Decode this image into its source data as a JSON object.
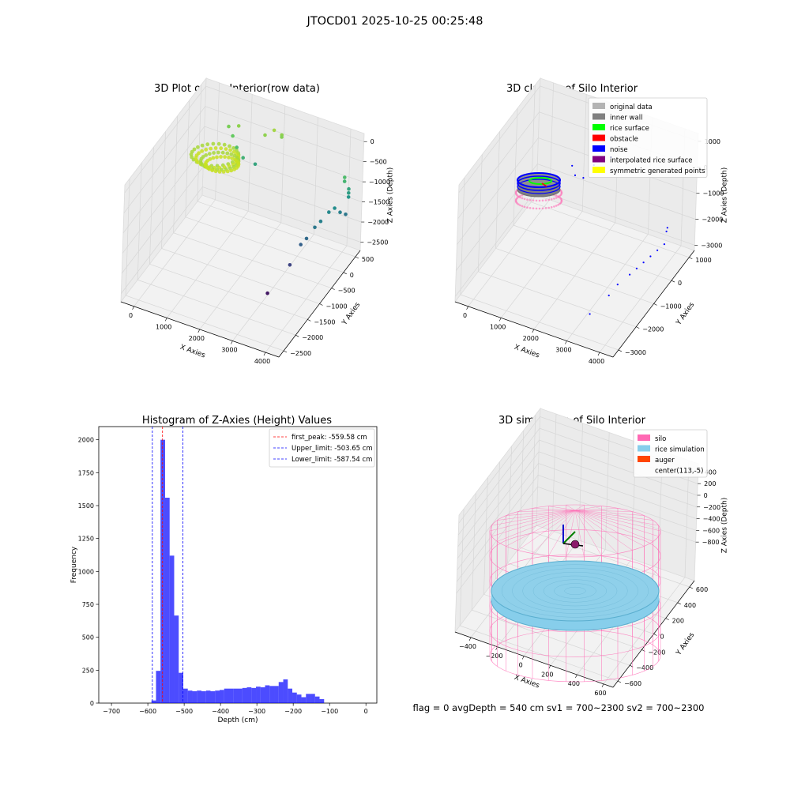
{
  "figure": {
    "suptitle": "JTOCD01 2025-10-25 00:25:48",
    "status_line": "flag = 0     avgDepth = 540 cm  sv1 = 700~2300  sv2 = 700~2300"
  },
  "chart_data": [
    {
      "type": "scatter",
      "projection": "3d",
      "title": "3D Plot of Silo Interior(row data)",
      "xlabel": "X Axies",
      "ylabel": "Y Axies",
      "zlabel": "Z Axies (Depth)",
      "x_ticks": [
        "0",
        "1000",
        "2000",
        "3000",
        "4000"
      ],
      "y_ticks": [
        "500",
        "0",
        "−500",
        "−1000",
        "−1500",
        "−2000",
        "−2500"
      ],
      "z_ticks": [
        "0",
        "−500",
        "−1000",
        "−1500",
        "−2000",
        "−2500"
      ],
      "xlim": [
        -400,
        4400
      ],
      "ylim": [
        -2700,
        700
      ],
      "zlim": [
        -2700,
        200
      ],
      "colormap": "viridis",
      "points": [
        {
          "x": 3100,
          "y": -1400,
          "z": -2500
        },
        {
          "x": 3400,
          "y": -900,
          "z": -2100
        },
        {
          "x": 3500,
          "y": -600,
          "z": -1800
        },
        {
          "x": 3600,
          "y": -500,
          "z": -1700
        },
        {
          "x": 3700,
          "y": -300,
          "z": -1550
        },
        {
          "x": 3800,
          "y": -200,
          "z": -1450
        },
        {
          "x": 3900,
          "y": 0,
          "z": -1350
        },
        {
          "x": 4000,
          "y": 100,
          "z": -1300
        },
        {
          "x": 4100,
          "y": 200,
          "z": -1450
        },
        {
          "x": 4200,
          "y": 300,
          "z": -1550
        },
        {
          "x": 4200,
          "y": 400,
          "z": -1000
        },
        {
          "x": 4200,
          "y": 400,
          "z": -1100
        },
        {
          "x": 4200,
          "y": 400,
          "z": -1200
        },
        {
          "x": 4100,
          "y": 350,
          "z": -800
        },
        {
          "x": 4100,
          "y": 350,
          "z": -700
        },
        {
          "x": 1500,
          "y": 200,
          "z": -1000
        },
        {
          "x": 1200,
          "y": 100,
          "z": -850
        },
        {
          "x": 1000,
          "y": 100,
          "z": -650
        },
        {
          "x": 800,
          "y": 200,
          "z": -500
        },
        {
          "x": 600,
          "y": 300,
          "z": -400
        },
        {
          "x": 1700,
          "y": 300,
          "z": -300
        },
        {
          "x": 1900,
          "y": 400,
          "z": -200
        },
        {
          "x": 2100,
          "y": 450,
          "z": -300
        },
        {
          "x": 2100,
          "y": 450,
          "z": -350
        },
        {
          "x": 900,
          "y": 300,
          "z": -300
        }
      ]
    },
    {
      "type": "scatter",
      "projection": "3d",
      "title": "3D classify of Silo Interior",
      "xlabel": "X Axies",
      "ylabel": "Y Axies",
      "zlabel": "Z Axies (Depth)",
      "x_ticks": [
        "0",
        "1000",
        "2000",
        "3000",
        "4000"
      ],
      "y_ticks": [
        "1000",
        "0",
        "−1000",
        "−2000",
        "−3000"
      ],
      "z_ticks": [
        "1000",
        "0",
        "−1000",
        "−2000",
        "−3000"
      ],
      "xlim": [
        -400,
        4400
      ],
      "ylim": [
        -3300,
        1300
      ],
      "zlim": [
        -3400,
        1100
      ],
      "legend": {
        "position": "top-right",
        "entries": [
          {
            "label": "original data",
            "color": "#b3b3b3"
          },
          {
            "label": "inner wall",
            "color": "#808080"
          },
          {
            "label": "rice surface",
            "color": "#00ff00"
          },
          {
            "label": "obstacle",
            "color": "#ff0000"
          },
          {
            "label": "noise",
            "color": "#0000ff"
          },
          {
            "label": "interpolated rice surface",
            "color": "#800080"
          },
          {
            "label": "symmetric generated points",
            "color": "#ffff00"
          }
        ]
      },
      "noise_points": [
        {
          "x": 3100,
          "y": -2200,
          "z": -3300
        },
        {
          "x": 3400,
          "y": -1700,
          "z": -2900
        },
        {
          "x": 3500,
          "y": -1400,
          "z": -2700
        },
        {
          "x": 3700,
          "y": -1100,
          "z": -2500
        },
        {
          "x": 3800,
          "y": -900,
          "z": -2400
        },
        {
          "x": 3900,
          "y": -700,
          "z": -2300
        },
        {
          "x": 4000,
          "y": -500,
          "z": -2200
        },
        {
          "x": 4100,
          "y": -300,
          "z": -2100
        },
        {
          "x": 4200,
          "y": -100,
          "z": -2000
        },
        {
          "x": 4200,
          "y": 0,
          "z": -1600
        },
        {
          "x": 4200,
          "y": 50,
          "z": -1500
        },
        {
          "x": 1500,
          "y": 300,
          "z": -1000
        },
        {
          "x": 1300,
          "y": 200,
          "z": -900
        },
        {
          "x": 1100,
          "y": 400,
          "z": -800
        },
        {
          "x": 1700,
          "y": 500,
          "z": -600
        },
        {
          "x": 1900,
          "y": 600,
          "z": -400
        },
        {
          "x": 2100,
          "y": 700,
          "z": -300
        }
      ]
    },
    {
      "type": "bar",
      "title": "Histogram of Z-Axies (Height) Values",
      "xlabel": "Depth (cm)",
      "ylabel": "Frequency",
      "xlim": [
        -735,
        30
      ],
      "ylim": [
        0,
        2100
      ],
      "x_ticks": [
        -700,
        -600,
        -500,
        -400,
        -300,
        -200,
        -100,
        0
      ],
      "y_ticks": [
        0,
        250,
        500,
        750,
        1000,
        1250,
        1500,
        1750,
        2000
      ],
      "bin_width": 12.5,
      "bin_start": -590,
      "values": [
        20,
        245,
        2000,
        1560,
        1120,
        665,
        230,
        110,
        95,
        90,
        95,
        90,
        95,
        90,
        95,
        100,
        110,
        110,
        110,
        110,
        115,
        120,
        115,
        125,
        120,
        135,
        130,
        130,
        160,
        180,
        110,
        80,
        65,
        45,
        70,
        70,
        50,
        30
      ],
      "bar_color": "#0000ff",
      "bar_alpha": 0.7,
      "legend": {
        "position": "top-right",
        "entries": [
          {
            "label": "first_peak: -559.58 cm",
            "color": "#ff0000",
            "x": -559.58
          },
          {
            "label": "Upper_limit: -503.65 cm",
            "color": "#0000ff",
            "x": -503.65
          },
          {
            "label": "Lower_limit: -587.54 cm",
            "color": "#0000ff",
            "x": -587.54
          }
        ]
      }
    },
    {
      "type": "scatter",
      "projection": "3d",
      "title": "3D simulation of Silo Interior",
      "xlabel": "X Axies",
      "ylabel": "Y Axies",
      "zlabel": "Z Axies (Depth)",
      "x_ticks": [
        "−400",
        "−200",
        "0",
        "200",
        "400",
        "600"
      ],
      "y_ticks": [
        "600",
        "400",
        "200",
        "0",
        "−200",
        "−400",
        "−600"
      ],
      "z_ticks": [
        "400",
        "200",
        "0",
        "−200",
        "−400",
        "−600",
        "−800"
      ],
      "legend": {
        "position": "top-right",
        "entries": [
          {
            "label": "silo",
            "color": "#ff69b4"
          },
          {
            "label": "rice simulation",
            "color": "#87ceeb"
          },
          {
            "label": "auger",
            "color": "#ff4500"
          },
          {
            "label": "center(113,-5)",
            "color": ""
          }
        ]
      }
    }
  ]
}
